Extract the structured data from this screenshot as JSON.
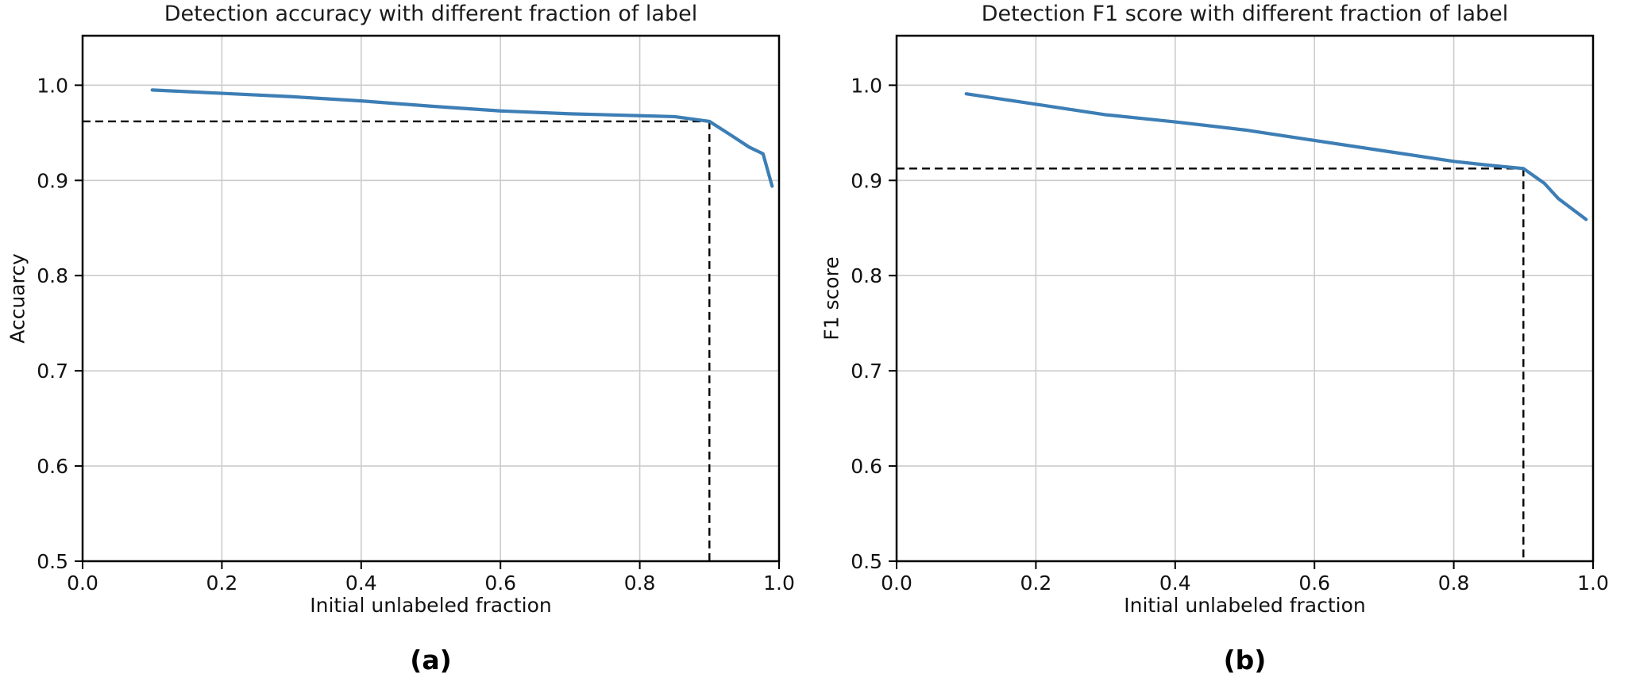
{
  "figure": {
    "background": "#ffffff",
    "grid_color": "#cccccc",
    "spine_color": "#000000",
    "dashed_color": "#000000",
    "accent_line_color": "#3d7eb5"
  },
  "chart_data": [
    {
      "type": "line",
      "title": "Detection accuracy with different fraction of label",
      "xlabel": "Initial unlabeled fraction",
      "ylabel": "Accuarcy",
      "caption": "(a)",
      "xlim": [
        0.0,
        1.0
      ],
      "ylim": [
        0.5,
        1.052
      ],
      "xticks": [
        0.0,
        0.2,
        0.4,
        0.6,
        0.8,
        1.0
      ],
      "yticks": [
        0.5,
        0.6,
        0.7,
        0.8,
        0.9,
        1.0
      ],
      "grid": true,
      "legend": null,
      "series": [
        {
          "name": "accuracy",
          "color": "#3d7eb5",
          "x": [
            0.1,
            0.2,
            0.3,
            0.4,
            0.5,
            0.6,
            0.7,
            0.8,
            0.85,
            0.9,
            0.93,
            0.957,
            0.977,
            0.99
          ],
          "y": [
            0.995,
            0.9915,
            0.988,
            0.9835,
            0.978,
            0.973,
            0.97,
            0.968,
            0.967,
            0.962,
            0.948,
            0.935,
            0.928,
            0.894
          ]
        }
      ],
      "crosshair": {
        "x": 0.9,
        "y": 0.962
      }
    },
    {
      "type": "line",
      "title": "Detection F1 score with different fraction of label",
      "xlabel": "Initial unlabeled fraction",
      "ylabel": "F1 score",
      "caption": "(b)",
      "xlim": [
        0.0,
        1.0
      ],
      "ylim": [
        0.5,
        1.052
      ],
      "xticks": [
        0.0,
        0.2,
        0.4,
        0.6,
        0.8,
        1.0
      ],
      "yticks": [
        0.5,
        0.6,
        0.7,
        0.8,
        0.9,
        1.0
      ],
      "grid": true,
      "legend": null,
      "series": [
        {
          "name": "f1-score",
          "color": "#3d7eb5",
          "x": [
            0.1,
            0.2,
            0.3,
            0.4,
            0.5,
            0.6,
            0.7,
            0.8,
            0.85,
            0.9,
            0.93,
            0.95,
            0.99
          ],
          "y": [
            0.991,
            0.98,
            0.969,
            0.9615,
            0.953,
            0.942,
            0.931,
            0.92,
            0.916,
            0.9125,
            0.897,
            0.881,
            0.859
          ]
        }
      ],
      "crosshair": {
        "x": 0.9,
        "y": 0.9125
      }
    }
  ]
}
